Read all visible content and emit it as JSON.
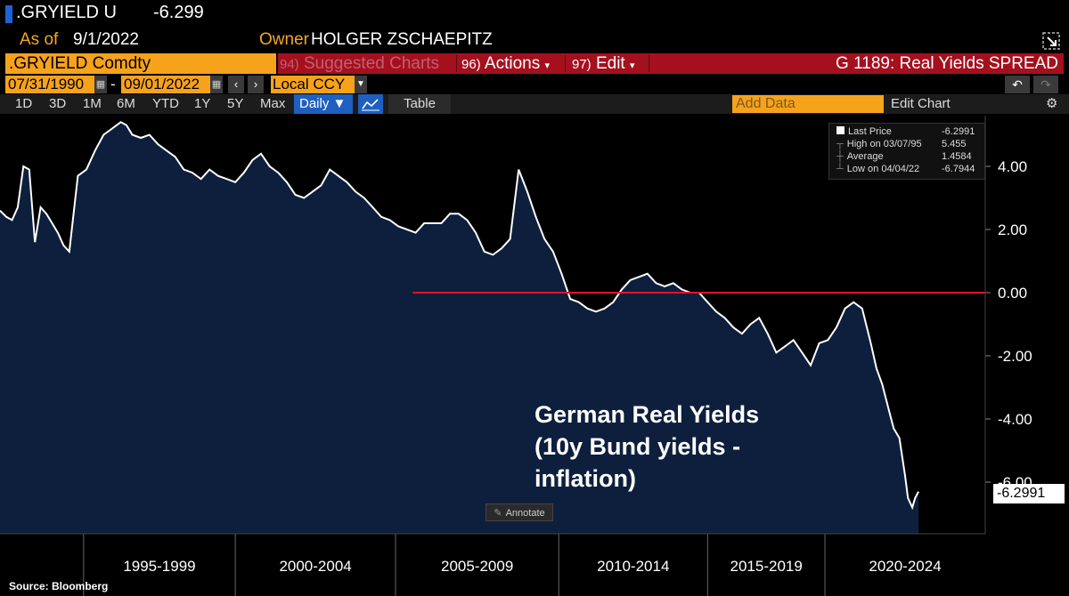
{
  "header": {
    "ticker": ".GRYIELD U",
    "price": "-6.299",
    "as_of_label": "As of",
    "as_of_value": "9/1/2022",
    "owner_label": "Owner",
    "owner_value": "HOLGER ZSCHAEPITZ"
  },
  "toolbar": {
    "security": ".GRYIELD Comdty",
    "suggested_num": "94)",
    "suggested": "Suggested Charts",
    "actions_num": "96)",
    "actions": "Actions",
    "edit_num": "97)",
    "edit": "Edit",
    "chart_title": "G 1189: Real Yields SPREAD",
    "start_date": "07/31/1990",
    "end_date": "09/01/2022",
    "date_sep": "-",
    "currency": "Local CCY",
    "ranges": [
      "1D",
      "3D",
      "1M",
      "6M",
      "YTD",
      "1Y",
      "5Y",
      "Max"
    ],
    "frequency": "Daily ▼",
    "table_btn": "Table",
    "add_data_placeholder": "Add Data",
    "edit_chart": "Edit Chart"
  },
  "legend": {
    "last_price_label": "Last Price",
    "last_price": "-6.2991",
    "high_label": "High on 03/07/95",
    "high": "5.455",
    "average_label": "Average",
    "average": "1.4584",
    "low_label": "Low on 04/04/22",
    "low": "-6.7944"
  },
  "annotation": {
    "line1": "German Real Yields",
    "line2": "(10y Bund yields -",
    "line3": "inflation)",
    "annotate_btn": "Annotate"
  },
  "last_value_label": "-6.2991",
  "source": "Source: Bloomberg",
  "colors": {
    "accent_orange": "#f7a21b",
    "bar_red": "#a5101e",
    "area_fill": "#0d1f3c",
    "line": "#ffffff",
    "zero_line": "#e8112d"
  },
  "chart_data": {
    "type": "area",
    "title": "German Real Yields (10y Bund yields - inflation)",
    "x_unit": "year",
    "xlim": [
      1990.58,
      2025.0
    ],
    "ylim": [
      -7.5,
      5.5
    ],
    "y_ticks": [
      4,
      2,
      0,
      -2,
      -4,
      -6
    ],
    "y_tick_labels": [
      "4.00",
      "2.00",
      "0.00",
      "-2.00",
      "-4.00",
      "-6.00"
    ],
    "x_tick_labels": [
      "1995-1999",
      "2000-2004",
      "2005-2009",
      "2010-2014",
      "2015-2019",
      "2020-2024"
    ],
    "x_separators": [
      1993.5,
      1998.8,
      2004.4,
      2010.1,
      2015.3,
      2019.4
    ],
    "reference_line": {
      "value": 0,
      "from": 2005.0,
      "to": 2025.0
    },
    "x": [
      1990.58,
      1990.8,
      1991.0,
      1991.2,
      1991.4,
      1991.6,
      1991.8,
      1992.0,
      1992.2,
      1992.4,
      1992.6,
      1992.8,
      1993.0,
      1993.3,
      1993.6,
      1993.9,
      1994.2,
      1994.5,
      1994.8,
      1995.0,
      1995.2,
      1995.5,
      1995.8,
      1996.1,
      1996.4,
      1996.7,
      1997.0,
      1997.3,
      1997.6,
      1997.9,
      1998.2,
      1998.5,
      1998.8,
      1999.1,
      1999.4,
      1999.7,
      2000.0,
      2000.3,
      2000.6,
      2000.9,
      2001.2,
      2001.5,
      2001.8,
      2002.1,
      2002.4,
      2002.7,
      2003.0,
      2003.3,
      2003.6,
      2003.9,
      2004.2,
      2004.5,
      2004.8,
      2005.1,
      2005.4,
      2005.7,
      2006.0,
      2006.3,
      2006.6,
      2006.9,
      2007.2,
      2007.5,
      2007.8,
      2008.1,
      2008.4,
      2008.7,
      2009.0,
      2009.3,
      2009.6,
      2009.9,
      2010.2,
      2010.5,
      2010.8,
      2011.1,
      2011.4,
      2011.7,
      2012.0,
      2012.3,
      2012.6,
      2012.9,
      2013.2,
      2013.5,
      2013.8,
      2014.1,
      2014.4,
      2014.7,
      2015.0,
      2015.3,
      2015.6,
      2015.9,
      2016.2,
      2016.5,
      2016.8,
      2017.1,
      2017.4,
      2017.7,
      2018.0,
      2018.3,
      2018.6,
      2018.9,
      2019.2,
      2019.5,
      2019.8,
      2020.1,
      2020.4,
      2020.7,
      2021.0,
      2021.2,
      2021.4,
      2021.6,
      2021.8,
      2022.0,
      2022.2,
      2022.3,
      2022.45,
      2022.55,
      2022.67
    ],
    "values": [
      2.6,
      2.4,
      2.3,
      2.7,
      4.0,
      3.9,
      1.6,
      2.7,
      2.5,
      2.2,
      1.9,
      1.5,
      1.3,
      3.7,
      3.9,
      4.5,
      5.0,
      5.2,
      5.4,
      5.3,
      5.0,
      4.9,
      5.0,
      4.7,
      4.5,
      4.3,
      3.9,
      3.8,
      3.6,
      3.9,
      3.7,
      3.6,
      3.5,
      3.8,
      4.2,
      4.4,
      4.0,
      3.8,
      3.5,
      3.1,
      3.0,
      3.2,
      3.4,
      3.9,
      3.7,
      3.5,
      3.2,
      3.0,
      2.7,
      2.4,
      2.3,
      2.1,
      2.0,
      1.9,
      2.2,
      2.2,
      2.2,
      2.5,
      2.5,
      2.3,
      1.9,
      1.3,
      1.2,
      1.4,
      1.7,
      3.9,
      3.2,
      2.4,
      1.7,
      1.3,
      0.6,
      -0.2,
      -0.3,
      -0.5,
      -0.6,
      -0.5,
      -0.3,
      0.1,
      0.4,
      0.5,
      0.6,
      0.3,
      0.2,
      0.3,
      0.1,
      0.0,
      0.0,
      -0.3,
      -0.6,
      -0.8,
      -1.1,
      -1.3,
      -1.0,
      -0.8,
      -1.3,
      -1.9,
      -1.7,
      -1.5,
      -1.9,
      -2.3,
      -1.6,
      -1.5,
      -1.1,
      -0.5,
      -0.3,
      -0.5,
      -1.6,
      -2.4,
      -2.9,
      -3.6,
      -4.3,
      -4.6,
      -5.8,
      -6.5,
      -6.8,
      -6.5,
      -6.3
    ]
  }
}
